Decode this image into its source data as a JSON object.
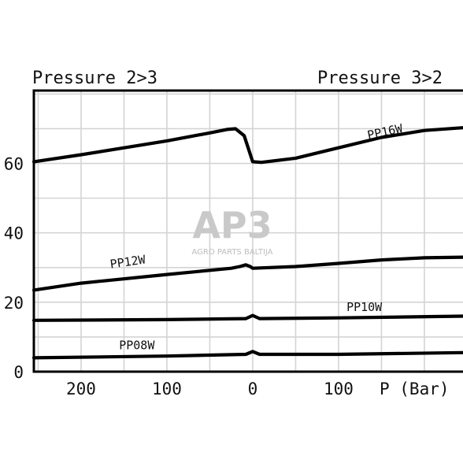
{
  "chart_data": {
    "type": "line",
    "header_left": "Pressure 2>3",
    "header_right": "Pressure 3>2",
    "xlabel": "P (Bar)",
    "ylabel": "",
    "x_tick_labels": [
      "200",
      "100",
      "0",
      "100"
    ],
    "x_tick_values": [
      -200,
      -100,
      0,
      100
    ],
    "y_tick_values": [
      0,
      20,
      40,
      60
    ],
    "y_tick_labels": [
      "0",
      "20",
      "40",
      "60"
    ],
    "xlim": [
      -255,
      245
    ],
    "ylim": [
      0,
      81
    ],
    "grid": true,
    "watermark": {
      "logo_text": "AP3",
      "subtitle": "AGRO PARTS BALTIJA"
    },
    "series": [
      {
        "name": "PP16W",
        "label_pos": {
          "x": 155,
          "y": 68
        },
        "label_rotate": -12,
        "points": [
          [
            -255,
            60.5
          ],
          [
            -200,
            62.5
          ],
          [
            -100,
            66.5
          ],
          [
            -50,
            68.8
          ],
          [
            -30,
            69.8
          ],
          [
            -20,
            70
          ],
          [
            -10,
            68
          ],
          [
            0,
            60.5
          ],
          [
            10,
            60.3
          ],
          [
            50,
            61.5
          ],
          [
            100,
            64.5
          ],
          [
            150,
            67.5
          ],
          [
            200,
            69.5
          ],
          [
            245,
            70.3
          ]
        ]
      },
      {
        "name": "PP12W",
        "label_pos": {
          "x": -145,
          "y": 30.5
        },
        "label_rotate": -8,
        "points": [
          [
            -255,
            23.5
          ],
          [
            -200,
            25.5
          ],
          [
            -100,
            28
          ],
          [
            -25,
            29.8
          ],
          [
            -15,
            30.3
          ],
          [
            -8,
            30.8
          ],
          [
            -3,
            30.3
          ],
          [
            0,
            29.8
          ],
          [
            50,
            30.3
          ],
          [
            100,
            31.2
          ],
          [
            150,
            32.2
          ],
          [
            200,
            32.8
          ],
          [
            245,
            33
          ]
        ]
      },
      {
        "name": "PP10W",
        "label_pos": {
          "x": 130,
          "y": 17.5
        },
        "label_rotate": 0,
        "points": [
          [
            -255,
            14.8
          ],
          [
            -100,
            15
          ],
          [
            -8,
            15.3
          ],
          [
            0,
            16.2
          ],
          [
            8,
            15.3
          ],
          [
            100,
            15.5
          ],
          [
            245,
            16
          ]
        ]
      },
      {
        "name": "PP08W",
        "label_pos": {
          "x": -135,
          "y": 6.5
        },
        "label_rotate": 0,
        "points": [
          [
            -255,
            4
          ],
          [
            -100,
            4.5
          ],
          [
            -8,
            5
          ],
          [
            0,
            5.8
          ],
          [
            8,
            5
          ],
          [
            100,
            5
          ],
          [
            245,
            5.5
          ]
        ]
      }
    ]
  }
}
